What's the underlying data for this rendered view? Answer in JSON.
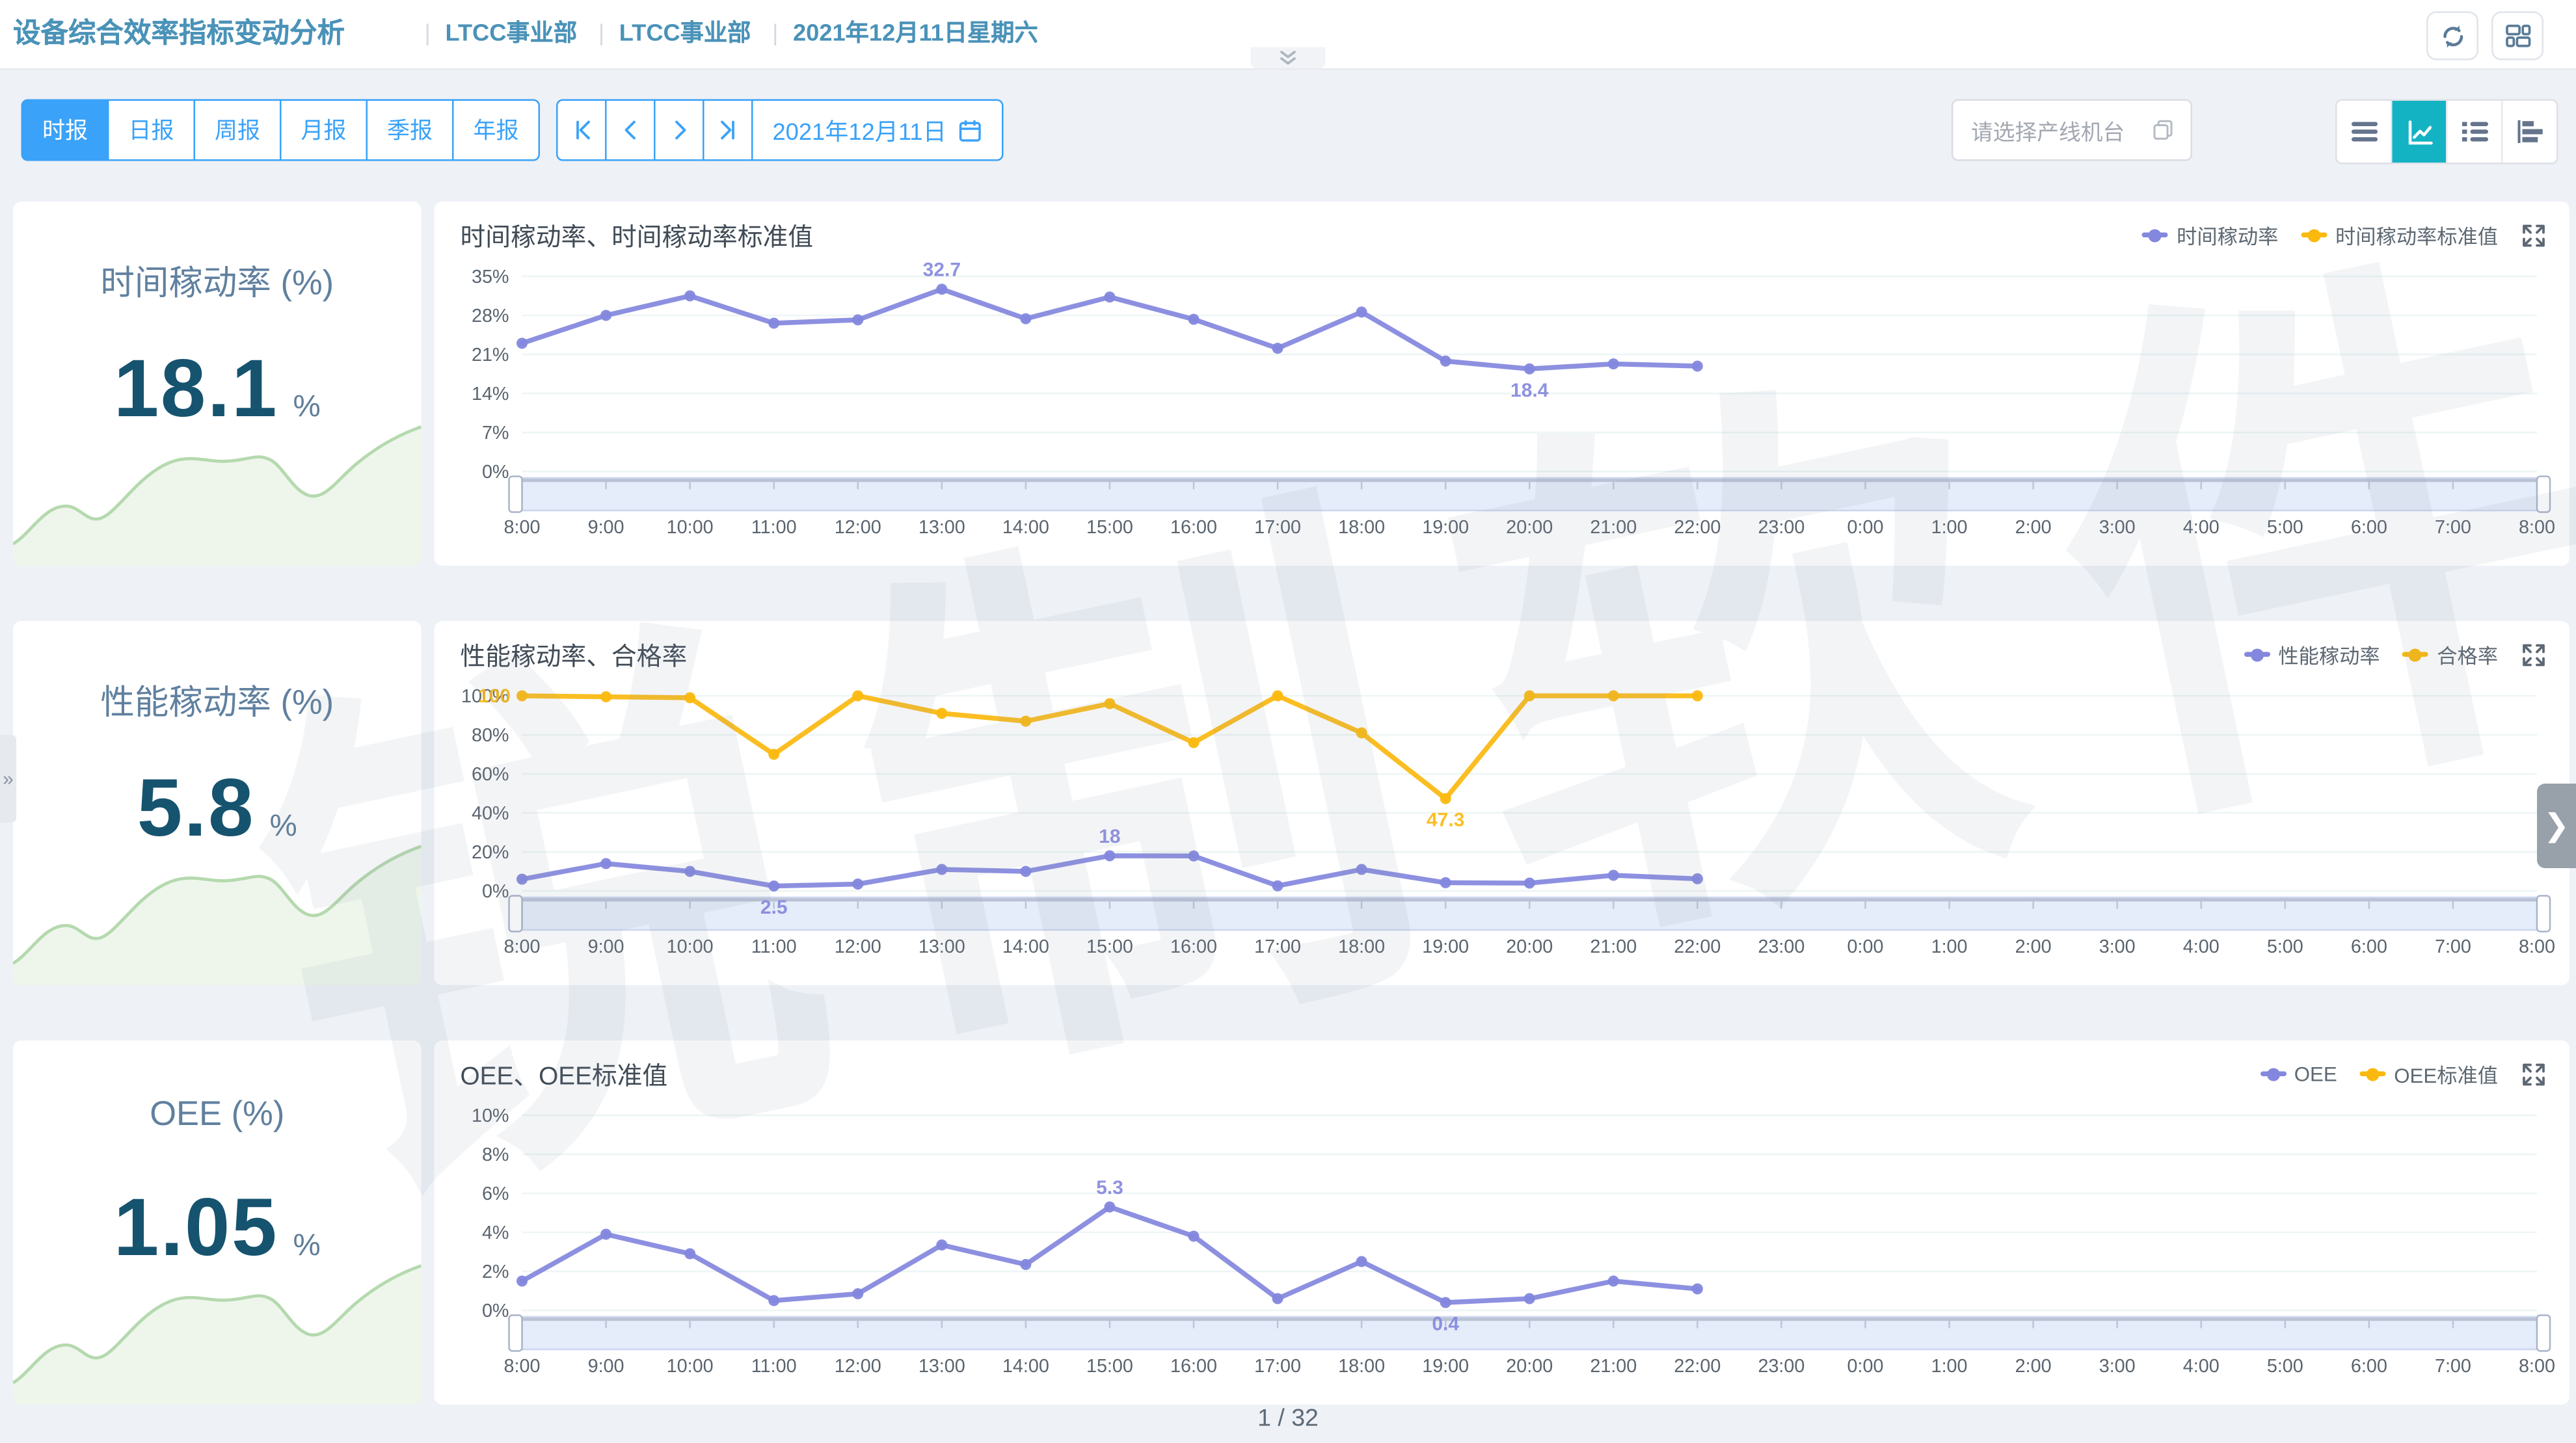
{
  "header": {
    "title": "设备综合效率指标变动分析",
    "breadcrumbs": [
      "LTCC事业部",
      "LTCC事业部",
      "2021年12月11日星期六"
    ]
  },
  "toolbar": {
    "period_tabs": [
      {
        "label": "时报",
        "active": true
      },
      {
        "label": "日报",
        "active": false
      },
      {
        "label": "周报",
        "active": false
      },
      {
        "label": "月报",
        "active": false
      },
      {
        "label": "季报",
        "active": false
      },
      {
        "label": "年报",
        "active": false
      }
    ],
    "date_value": "2021年12月11日",
    "machine_select_placeholder": "请选择产线机台",
    "view_modes": [
      {
        "name": "menu-view",
        "active": false
      },
      {
        "name": "trend-chart-view",
        "active": true
      },
      {
        "name": "list-view",
        "active": false
      },
      {
        "name": "bar-chart-view",
        "active": false
      }
    ]
  },
  "cards": [
    {
      "label": "时间稼动率 (%)",
      "value": "18.1",
      "unit": "%"
    },
    {
      "label": "性能稼动率 (%)",
      "value": "5.8",
      "unit": "%"
    },
    {
      "label": "OEE (%)",
      "value": "1.05",
      "unit": "%"
    }
  ],
  "time_axis": [
    "8:00",
    "9:00",
    "10:00",
    "11:00",
    "12:00",
    "13:00",
    "14:00",
    "15:00",
    "16:00",
    "17:00",
    "18:00",
    "19:00",
    "20:00",
    "21:00",
    "22:00",
    "23:00",
    "0:00",
    "1:00",
    "2:00",
    "3:00",
    "4:00",
    "5:00",
    "6:00",
    "7:00",
    "8:00"
  ],
  "charts": [
    {
      "type": "line",
      "title": "时间稼动率、时间稼动率标准值",
      "legend": [
        {
          "name": "时间稼动率",
          "color": "#8387dd"
        },
        {
          "name": "时间稼动率标准值",
          "color": "#fbb90f"
        }
      ],
      "ylim": [
        0,
        35
      ],
      "yticks": [
        "0%",
        "7%",
        "14%",
        "21%",
        "28%",
        "35%"
      ],
      "series": [
        {
          "name": "时间稼动率",
          "color": "#8387dd",
          "values": [
            23.0,
            28.0,
            31.5,
            26.6,
            27.2,
            32.7,
            27.4,
            31.3,
            27.3,
            22.1,
            28.6,
            19.8,
            18.4,
            19.3,
            18.9
          ]
        },
        {
          "name": "时间稼动率标准值",
          "color": "#fbb90f",
          "values": []
        }
      ],
      "point_labels": [
        {
          "series": 0,
          "index": 5,
          "text": "32.7",
          "pos": "above"
        },
        {
          "series": 0,
          "index": 12,
          "text": "18.4",
          "pos": "below"
        }
      ]
    },
    {
      "type": "line",
      "title": "性能稼动率、合格率",
      "legend": [
        {
          "name": "性能稼动率",
          "color": "#8387dd"
        },
        {
          "name": "合格率",
          "color": "#fbb90f"
        }
      ],
      "ylim": [
        0,
        100
      ],
      "yticks": [
        "0%",
        "20%",
        "40%",
        "60%",
        "80%",
        "100%"
      ],
      "series": [
        {
          "name": "性能稼动率",
          "color": "#8387dd",
          "values": [
            6,
            14,
            10,
            2.5,
            3.5,
            11,
            10,
            18,
            17.9,
            2.6,
            11,
            4.2,
            4.0,
            8,
            6.2
          ]
        },
        {
          "name": "合格率",
          "color": "#fbb90f",
          "values": [
            100,
            99.5,
            99,
            70,
            100,
            91,
            87,
            96,
            76,
            100,
            81,
            47.3,
            100,
            100,
            100
          ]
        }
      ],
      "point_labels": [
        {
          "series": 1,
          "index": 0,
          "text": "100",
          "pos": "left"
        },
        {
          "series": 1,
          "index": 11,
          "text": "47.3",
          "pos": "below"
        },
        {
          "series": 0,
          "index": 3,
          "text": "2.5",
          "pos": "below"
        },
        {
          "series": 0,
          "index": 7,
          "text": "18",
          "pos": "above"
        }
      ]
    },
    {
      "type": "line",
      "title": "OEE、OEE标准值",
      "legend": [
        {
          "name": "OEE",
          "color": "#8387dd"
        },
        {
          "name": "OEE标准值",
          "color": "#fbb90f"
        }
      ],
      "ylim": [
        0,
        10
      ],
      "yticks": [
        "0%",
        "2%",
        "4%",
        "6%",
        "8%",
        "10%"
      ],
      "series": [
        {
          "name": "OEE",
          "color": "#8387dd",
          "values": [
            1.5,
            3.9,
            2.9,
            0.5,
            0.85,
            3.35,
            2.35,
            5.3,
            3.8,
            0.6,
            2.5,
            0.4,
            0.6,
            1.5,
            1.1
          ]
        },
        {
          "name": "OEE标准值",
          "color": "#fbb90f",
          "values": []
        }
      ],
      "point_labels": [
        {
          "series": 0,
          "index": 7,
          "text": "5.3",
          "pos": "above"
        },
        {
          "series": 0,
          "index": 11,
          "text": "0.4",
          "pos": "below"
        }
      ]
    }
  ],
  "footer": {
    "page_indicator": "1 / 32"
  },
  "watermark": "锐制软件",
  "pagers": {
    "right_arrow": "❯",
    "left_arrow": "»"
  },
  "colors": {
    "accent_blue": "#3aa2f8",
    "active_teal": "#14b3c4",
    "series_purple": "#8387dd",
    "series_yellow": "#fbb90f",
    "title_blue": "#4a92b8",
    "kpi_value": "#16536f",
    "sparkline_green": "#b5d9ae",
    "page_bg": "#eef1f6"
  }
}
